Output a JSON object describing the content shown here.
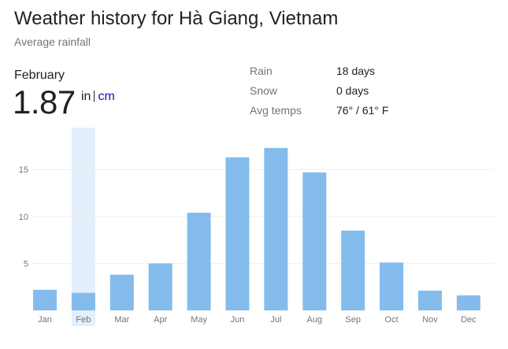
{
  "header": {
    "title": "Weather history for Hà Giang, Vietnam",
    "subtitle": "Average rainfall"
  },
  "selected": {
    "month": "February",
    "value": "1.87",
    "unit_in": "in",
    "unit_cm": "cm"
  },
  "stats": [
    {
      "label": "Rain",
      "value": "18 days"
    },
    {
      "label": "Snow",
      "value": "0 days"
    },
    {
      "label": "Avg temps",
      "value": "76° / 61° F"
    }
  ],
  "colors": {
    "bar": "#83bcec",
    "highlight": "#e3f0fb",
    "grid": "#eeeeee"
  },
  "chart_data": {
    "type": "bar",
    "categories": [
      "Jan",
      "Feb",
      "Mar",
      "Apr",
      "May",
      "Jun",
      "Jul",
      "Aug",
      "Sep",
      "Oct",
      "Nov",
      "Dec"
    ],
    "values": [
      2.2,
      1.87,
      3.8,
      5.0,
      10.4,
      16.3,
      17.3,
      14.7,
      8.5,
      5.1,
      2.1,
      1.6
    ],
    "title": "",
    "xlabel": "",
    "ylabel": "",
    "yticks": [
      "5",
      "10",
      "15"
    ],
    "ylim": [
      0,
      20
    ],
    "grid": true,
    "selected_index": 1
  }
}
